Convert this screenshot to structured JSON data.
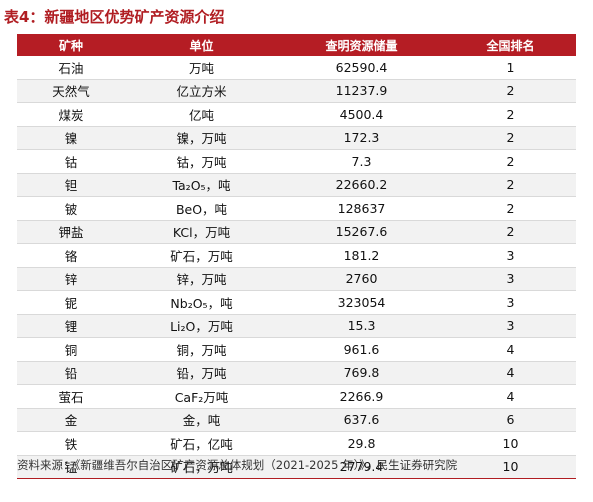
{
  "title": "表4：新疆地区优势矿产资源介绍",
  "columns": [
    "矿种",
    "单位",
    "查明资源储量",
    "全国排名"
  ],
  "rows": [
    {
      "mineral": "石油",
      "unit": "万吨",
      "reserves": "62590.4",
      "rank": "1"
    },
    {
      "mineral": "天然气",
      "unit": "亿立方米",
      "reserves": "11237.9",
      "rank": "2"
    },
    {
      "mineral": "煤炭",
      "unit": "亿吨",
      "reserves": "4500.4",
      "rank": "2"
    },
    {
      "mineral": "镍",
      "unit": "镍，万吨",
      "reserves": "172.3",
      "rank": "2"
    },
    {
      "mineral": "钴",
      "unit": "钴，万吨",
      "reserves": "7.3",
      "rank": "2"
    },
    {
      "mineral": "钽",
      "unit": "Ta₂O₅，吨",
      "reserves": "22660.2",
      "rank": "2"
    },
    {
      "mineral": "铍",
      "unit": "BeO，吨",
      "reserves": "128637",
      "rank": "2"
    },
    {
      "mineral": "钾盐",
      "unit": "KCl，万吨",
      "reserves": "15267.6",
      "rank": "2"
    },
    {
      "mineral": "铬",
      "unit": "矿石，万吨",
      "reserves": "181.2",
      "rank": "3"
    },
    {
      "mineral": "锌",
      "unit": "锌，万吨",
      "reserves": "2760",
      "rank": "3"
    },
    {
      "mineral": "铌",
      "unit": "Nb₂O₅，吨",
      "reserves": "323054",
      "rank": "3"
    },
    {
      "mineral": "锂",
      "unit": "Li₂O，万吨",
      "reserves": "15.3",
      "rank": "3"
    },
    {
      "mineral": "铜",
      "unit": "铜，万吨",
      "reserves": "961.6",
      "rank": "4"
    },
    {
      "mineral": "铅",
      "unit": "铅，万吨",
      "reserves": "769.8",
      "rank": "4"
    },
    {
      "mineral": "萤石",
      "unit": "CaF₂万吨",
      "reserves": "2266.9",
      "rank": "4"
    },
    {
      "mineral": "金",
      "unit": "金，吨",
      "reserves": "637.6",
      "rank": "6"
    },
    {
      "mineral": "铁",
      "unit": "矿石，亿吨",
      "reserves": "29.8",
      "rank": "10"
    },
    {
      "mineral": "锰",
      "unit": "矿石，万吨",
      "reserves": "2779.4",
      "rank": "10"
    }
  ],
  "source": "资料来源：《新疆维吾尔自治区矿产资源总体规划（2021-2025 年）》，民生证券研究院",
  "colors": {
    "accent": "#b51d24",
    "stripe": "#f2f2f2"
  }
}
